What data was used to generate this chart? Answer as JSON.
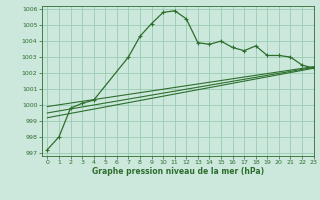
{
  "title": "Graphe pression niveau de la mer (hPa)",
  "bg_color": "#cce8dc",
  "grid_color": "#99ccb3",
  "line_color": "#2d6e2d",
  "xlim": [
    -0.5,
    23
  ],
  "ylim": [
    996.8,
    1006.2
  ],
  "xticks": [
    0,
    1,
    2,
    3,
    4,
    5,
    6,
    7,
    8,
    9,
    10,
    11,
    12,
    13,
    14,
    15,
    16,
    17,
    18,
    19,
    20,
    21,
    22,
    23
  ],
  "yticks": [
    997,
    998,
    999,
    1000,
    1001,
    1002,
    1003,
    1004,
    1005,
    1006
  ],
  "main_series_x": [
    0,
    1,
    2,
    3,
    4,
    7,
    8,
    9,
    10,
    11,
    12,
    13,
    14,
    15,
    16,
    17,
    18,
    19,
    20,
    21,
    22,
    23
  ],
  "main_series_y": [
    997.2,
    998.0,
    999.8,
    1000.1,
    1000.3,
    1003.0,
    1004.3,
    1005.1,
    1005.8,
    1005.9,
    1005.4,
    1003.9,
    1003.8,
    1004.0,
    1003.6,
    1003.4,
    1003.7,
    1003.1,
    1003.1,
    1003.0,
    1002.5,
    1002.3
  ],
  "smooth_lines": [
    {
      "x": [
        0,
        23
      ],
      "y": [
        999.2,
        1002.3
      ]
    },
    {
      "x": [
        0,
        23
      ],
      "y": [
        999.5,
        1002.35
      ]
    },
    {
      "x": [
        0,
        23
      ],
      "y": [
        999.9,
        1002.4
      ]
    }
  ]
}
